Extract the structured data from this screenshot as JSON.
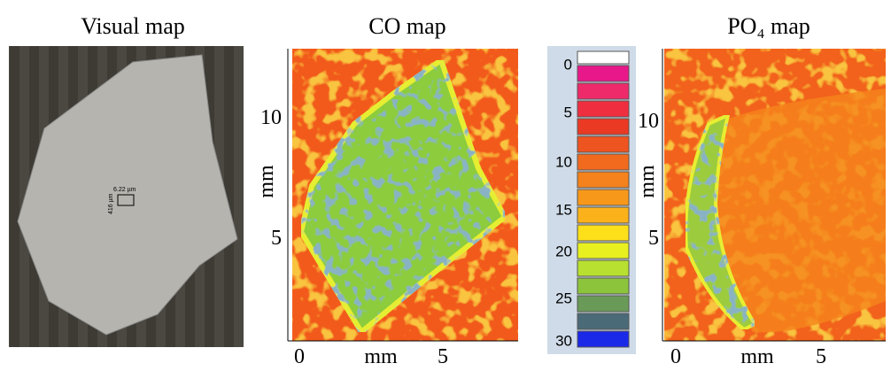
{
  "panels": [
    {
      "title": "Visual map",
      "scale_labels": [
        "6.22 µm",
        "416 µm"
      ]
    },
    {
      "title": "CO map",
      "y_ticks": [
        "10",
        "5"
      ],
      "y_label": "mm",
      "x_ticks": [
        "0",
        "5"
      ],
      "x_label": "mm"
    },
    {
      "title": "PO₄ map",
      "y_ticks": [
        "10",
        "5"
      ],
      "y_label": "mm",
      "x_ticks": [
        "0",
        "5"
      ],
      "x_label": "mm"
    }
  ],
  "colorbar": {
    "labels": [
      "0",
      "5",
      "10",
      "15",
      "20",
      "25",
      "30"
    ]
  }
}
